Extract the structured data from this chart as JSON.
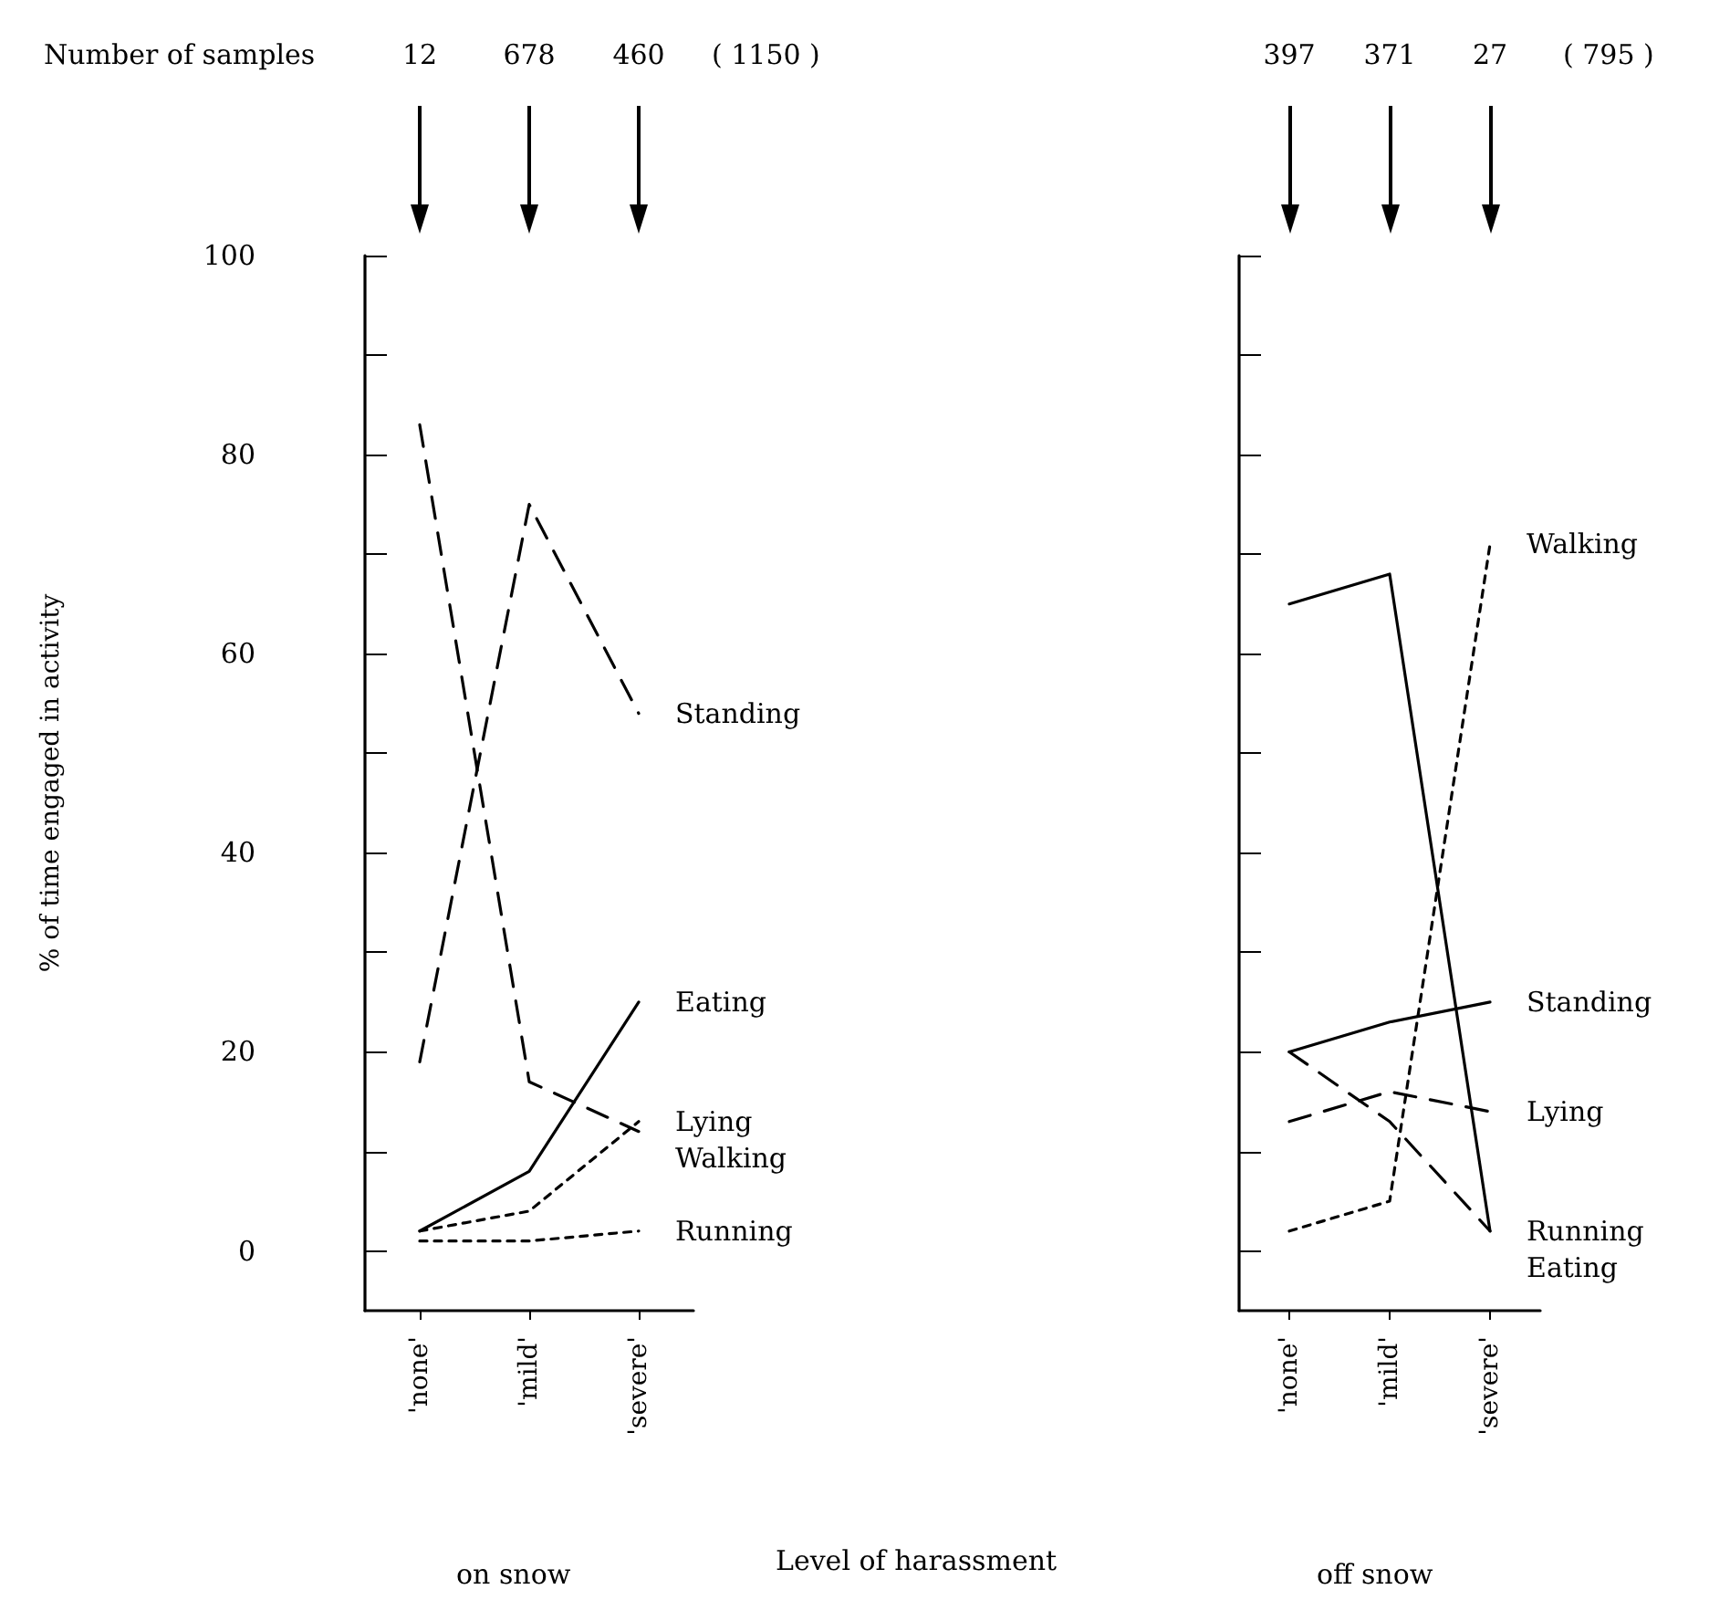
{
  "chart_data": [
    {
      "type": "line",
      "title": "on snow",
      "xlabel": "Level of harassment",
      "ylabel": "% of time engaged in activity",
      "categories": [
        "'none'",
        "'mild'",
        "'severe'"
      ],
      "series": [
        {
          "name": "Standing",
          "color": "#000000",
          "line_style": "dashed",
          "values": [
            19,
            75,
            54
          ]
        },
        {
          "name": "Walking",
          "color": "#000000",
          "line_style": "dashed",
          "values": [
            83,
            17,
            12
          ]
        },
        {
          "name": "Eating",
          "color": "#000000",
          "line_style": "solid",
          "values": [
            2,
            8,
            25
          ]
        },
        {
          "name": "Lying",
          "color": "#000000",
          "line_style": "dotted",
          "values": [
            2,
            4,
            13
          ]
        },
        {
          "name": "Running",
          "color": "#000000",
          "line_style": "dotted",
          "values": [
            1,
            1,
            2
          ]
        }
      ],
      "ylim": [
        -6,
        100
      ],
      "yticks": [
        0,
        {
          "value": 10,
          "label": null
        },
        20,
        {
          "value": 30,
          "label": null
        },
        40,
        {
          "value": 50,
          "label": null
        },
        60,
        {
          "value": 70,
          "label": null
        },
        80,
        {
          "value": 90,
          "label": null
        },
        100
      ],
      "annotations": [
        "Number of samples",
        "12",
        "678",
        "460",
        "( 1150 )"
      ],
      "grid": false,
      "legend": false,
      "marker": "none"
    },
    {
      "type": "line",
      "title": "off snow",
      "categories": [
        "'none'",
        "'mild'",
        "'severe'"
      ],
      "series": [
        {
          "name": "Walking",
          "color": "#000000",
          "line_style": "dotted",
          "values": [
            2,
            5,
            71
          ]
        },
        {
          "name": "Standing",
          "color": "#000000",
          "line_style": "solid",
          "values": [
            20,
            23,
            25
          ]
        },
        {
          "name": "Lying",
          "color": "#000000",
          "line_style": "dashed",
          "values": [
            13,
            16,
            14
          ]
        },
        {
          "name": "Running",
          "color": "#000000",
          "line_style": "dashed",
          "values": [
            20,
            13,
            2
          ]
        },
        {
          "name": "Eating",
          "color": "#000000",
          "line_style": "solid",
          "values": [
            65,
            68,
            2
          ]
        }
      ],
      "ylim": [
        -6,
        100
      ],
      "yticks": [
        0,
        {
          "value": 10,
          "label": null
        },
        20,
        {
          "value": 30,
          "label": null
        },
        40,
        {
          "value": 50,
          "label": null
        },
        60,
        {
          "value": 70,
          "label": null
        },
        80,
        {
          "value": 90,
          "label": null
        },
        100
      ],
      "tick_labels": "x",
      "annotations": [
        "397",
        "371",
        "27",
        "( 795 )"
      ],
      "grid": false,
      "legend": false,
      "marker": "none"
    }
  ]
}
